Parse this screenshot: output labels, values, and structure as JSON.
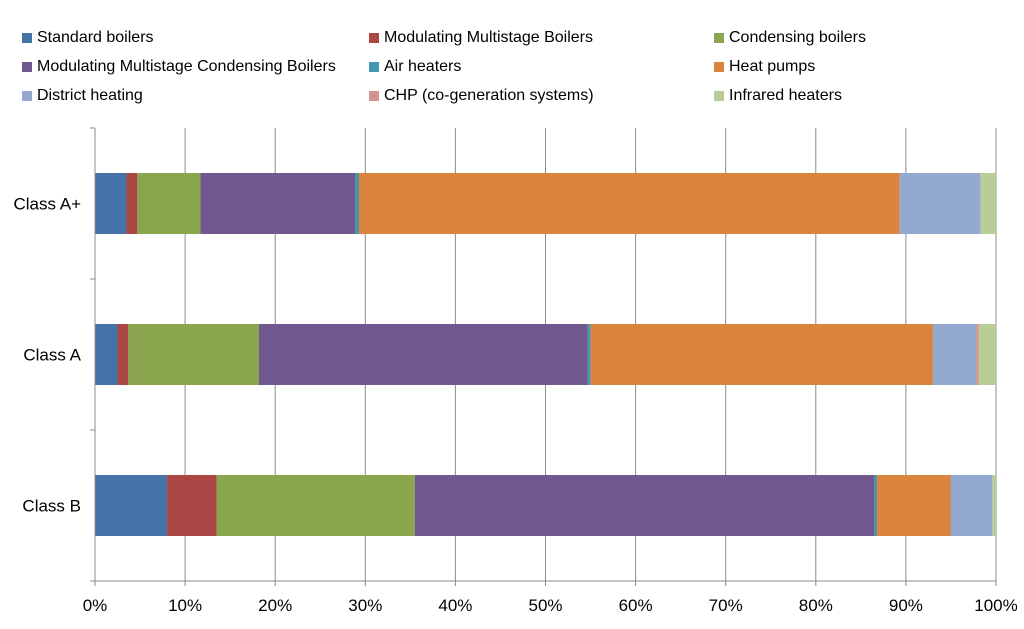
{
  "chart_data": {
    "type": "bar",
    "orientation": "horizontal",
    "stacked": "percent",
    "title": "",
    "xlabel": "",
    "ylabel": "",
    "xlim": [
      0,
      100
    ],
    "x_ticks": [
      "0%",
      "10%",
      "20%",
      "30%",
      "40%",
      "50%",
      "60%",
      "70%",
      "80%",
      "90%",
      "100%"
    ],
    "categories": [
      "Class A+",
      "Class A",
      "Class B"
    ],
    "grid": "vertical",
    "legend_position": "top",
    "series": [
      {
        "name": "Standard boilers",
        "color": "#4572A7",
        "values": [
          3.5,
          2.5,
          8.0
        ]
      },
      {
        "name": "Modulating Multistage Boilers",
        "color": "#AA4643",
        "values": [
          1.2,
          1.2,
          5.5
        ]
      },
      {
        "name": "Condensing boilers",
        "color": "#89A54E",
        "values": [
          7.0,
          14.5,
          22.0
        ]
      },
      {
        "name": "Modulating Multistage Condensing Boilers",
        "color": "#71588F",
        "values": [
          17.2,
          36.5,
          51.0
        ]
      },
      {
        "name": "Air heaters",
        "color": "#4198AF",
        "values": [
          0.4,
          0.3,
          0.3
        ]
      },
      {
        "name": "Heat pumps",
        "color": "#DB843D",
        "values": [
          60.0,
          38.0,
          8.2
        ]
      },
      {
        "name": "District heating",
        "color": "#93A9CF",
        "values": [
          9.0,
          4.8,
          4.6
        ]
      },
      {
        "name": "CHP (co-generation systems)",
        "color": "#D19392",
        "values": [
          0.0,
          0.3,
          0.0
        ]
      },
      {
        "name": "Infrared heaters",
        "color": "#B9CD96",
        "values": [
          1.7,
          1.9,
          0.4
        ]
      }
    ]
  }
}
